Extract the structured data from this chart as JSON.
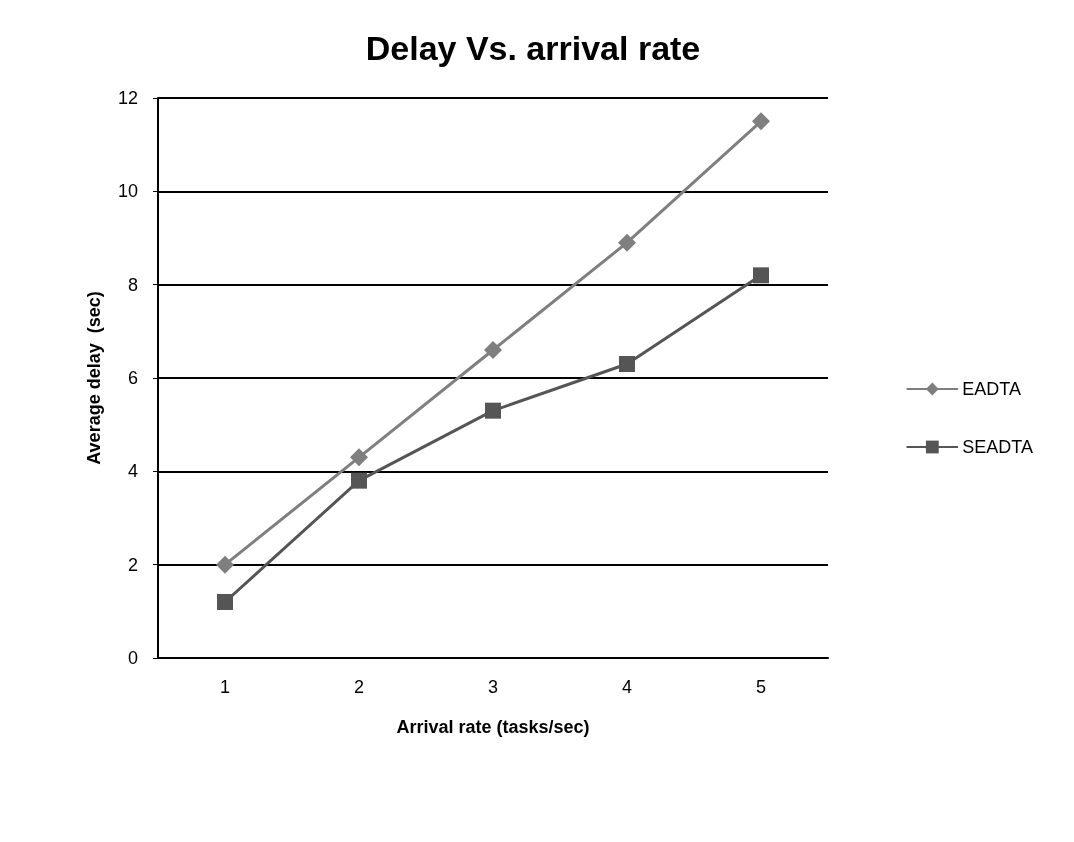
{
  "chart_data": {
    "type": "line",
    "title": "Delay Vs. arrival rate",
    "xlabel": "Arrival rate (tasks/sec)",
    "ylabel": "Average delay  (sec)",
    "categories": [
      "1",
      "2",
      "3",
      "4",
      "5"
    ],
    "series": [
      {
        "name": "EADTA",
        "color": "#7f7f7f",
        "marker": "diamond",
        "values": [
          2.0,
          4.3,
          6.6,
          8.9,
          11.5
        ]
      },
      {
        "name": "SEADTA",
        "color": "#555555",
        "marker": "square",
        "values": [
          1.2,
          3.8,
          5.3,
          6.3,
          8.2
        ]
      }
    ],
    "ylim": [
      0,
      12
    ],
    "yticks": [
      0,
      2,
      4,
      6,
      8,
      10,
      12
    ],
    "grid": "y",
    "legend": "right",
    "line_style": "solid"
  }
}
